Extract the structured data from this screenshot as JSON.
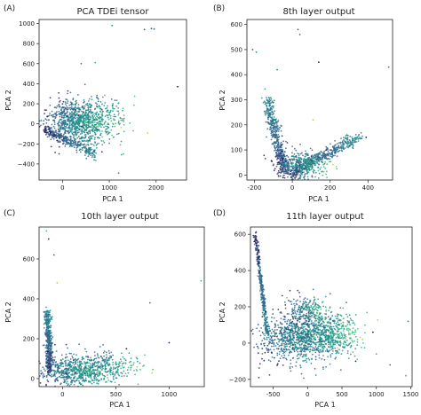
{
  "chart_data": [
    {
      "panel_label": "(A)",
      "title": "PCA TDEi tensor",
      "type": "scatter",
      "xlabel": "PCA 1",
      "ylabel": "PCA 2",
      "xlim": [
        -500,
        2650
      ],
      "ylim": [
        -560,
        1040
      ],
      "xticks": [
        0,
        1000,
        2000
      ],
      "yticks": [
        -400,
        -200,
        0,
        200,
        400,
        600,
        800,
        1000
      ],
      "colormap": [
        "#2c1e5c",
        "#30688e",
        "#21908d",
        "#3bb77a",
        "#a5d63b"
      ],
      "clusters": [
        {
          "kind": "blob",
          "cx": 300,
          "cy": 20,
          "sx": 320,
          "sy": 110,
          "n": 900
        },
        {
          "kind": "edge",
          "from": [
            -380,
            -60
          ],
          "to": [
            700,
            -300
          ],
          "n": 260,
          "spread": 25
        },
        {
          "kind": "blob",
          "cx": 900,
          "cy": 40,
          "sx": 260,
          "sy": 120,
          "n": 160
        }
      ],
      "outliers": [
        [
          1750,
          940
        ],
        [
          1900,
          950
        ],
        [
          1960,
          945
        ],
        [
          2460,
          370
        ],
        [
          1060,
          980
        ],
        [
          700,
          610
        ],
        [
          1200,
          -490
        ],
        [
          1300,
          -300
        ],
        [
          400,
          600
        ]
      ]
    },
    {
      "panel_label": "(B)",
      "title": "8th layer output",
      "type": "scatter",
      "xlabel": "PCA 1",
      "ylabel": "PCA 2",
      "xlim": [
        -240,
        530
      ],
      "ylim": [
        -20,
        620
      ],
      "xticks": [
        -200,
        0,
        200,
        400
      ],
      "yticks": [
        0,
        100,
        200,
        300,
        400,
        500,
        600
      ],
      "colormap": [
        "#2c1e5c",
        "#30688e",
        "#21908d",
        "#3bb77a",
        "#a5d63b"
      ],
      "clusters": [
        {
          "kind": "edge",
          "from": [
            -40,
            10
          ],
          "to": [
            -130,
            300
          ],
          "n": 420,
          "spread": 14
        },
        {
          "kind": "edge",
          "from": [
            -10,
            5
          ],
          "to": [
            350,
            150
          ],
          "n": 460,
          "spread": 12
        },
        {
          "kind": "blob",
          "cx": 40,
          "cy": 40,
          "sx": 70,
          "sy": 30,
          "n": 380
        }
      ],
      "outliers": [
        [
          -190,
          490
        ],
        [
          -210,
          500
        ],
        [
          30,
          580
        ],
        [
          40,
          560
        ],
        [
          510,
          430
        ],
        [
          140,
          450
        ],
        [
          110,
          220
        ],
        [
          -80,
          420
        ],
        [
          390,
          150
        ],
        [
          180,
          100
        ]
      ]
    },
    {
      "panel_label": "(C)",
      "title": "10th layer output",
      "type": "scatter",
      "xlabel": "PCA 1",
      "ylabel": "PCA 2",
      "xlim": [
        -220,
        1330
      ],
      "ylim": [
        -40,
        760
      ],
      "xticks": [
        0,
        500,
        1000
      ],
      "yticks": [
        0,
        200,
        400,
        600
      ],
      "colormap": [
        "#2c1e5c",
        "#30688e",
        "#21908d",
        "#3bb77a",
        "#a5d63b"
      ],
      "clusters": [
        {
          "kind": "edge",
          "from": [
            -120,
            40
          ],
          "to": [
            -140,
            330
          ],
          "n": 420,
          "spread": 16
        },
        {
          "kind": "blob",
          "cx": 100,
          "cy": 40,
          "sx": 170,
          "sy": 40,
          "n": 650
        },
        {
          "kind": "blob",
          "cx": 450,
          "cy": 60,
          "sx": 140,
          "sy": 40,
          "n": 200
        }
      ],
      "outliers": [
        [
          -150,
          740
        ],
        [
          -130,
          700
        ],
        [
          -80,
          620
        ],
        [
          1300,
          490
        ],
        [
          820,
          380
        ],
        [
          1000,
          180
        ],
        [
          600,
          150
        ],
        [
          -50,
          480
        ],
        [
          700,
          100
        ]
      ]
    },
    {
      "panel_label": "(D)",
      "title": "11th layer output",
      "type": "scatter",
      "xlabel": "PCA 1",
      "ylabel": "PCA 2",
      "xlim": [
        -830,
        1520
      ],
      "ylim": [
        -240,
        640
      ],
      "xticks": [
        -500,
        0,
        500,
        1000,
        1500
      ],
      "yticks": [
        -200,
        0,
        200,
        400,
        600
      ],
      "colormap": [
        "#2c1e5c",
        "#30688e",
        "#21908d",
        "#3bb77a",
        "#a5d63b"
      ],
      "clusters": [
        {
          "kind": "edge",
          "from": [
            -760,
            600
          ],
          "to": [
            -580,
            40
          ],
          "n": 340,
          "spread": 14
        },
        {
          "kind": "blob",
          "cx": -200,
          "cy": 30,
          "sx": 260,
          "sy": 70,
          "n": 700
        },
        {
          "kind": "blob",
          "cx": 250,
          "cy": 40,
          "sx": 250,
          "sy": 60,
          "n": 650
        },
        {
          "kind": "blob",
          "cx": 0,
          "cy": 180,
          "sx": 150,
          "sy": 40,
          "n": 200
        }
      ],
      "outliers": [
        [
          1430,
          -180
        ],
        [
          1460,
          120
        ],
        [
          1000,
          -60
        ],
        [
          950,
          60
        ],
        [
          -300,
          250
        ],
        [
          700,
          -100
        ],
        [
          800,
          20
        ],
        [
          1200,
          -120
        ]
      ]
    }
  ]
}
